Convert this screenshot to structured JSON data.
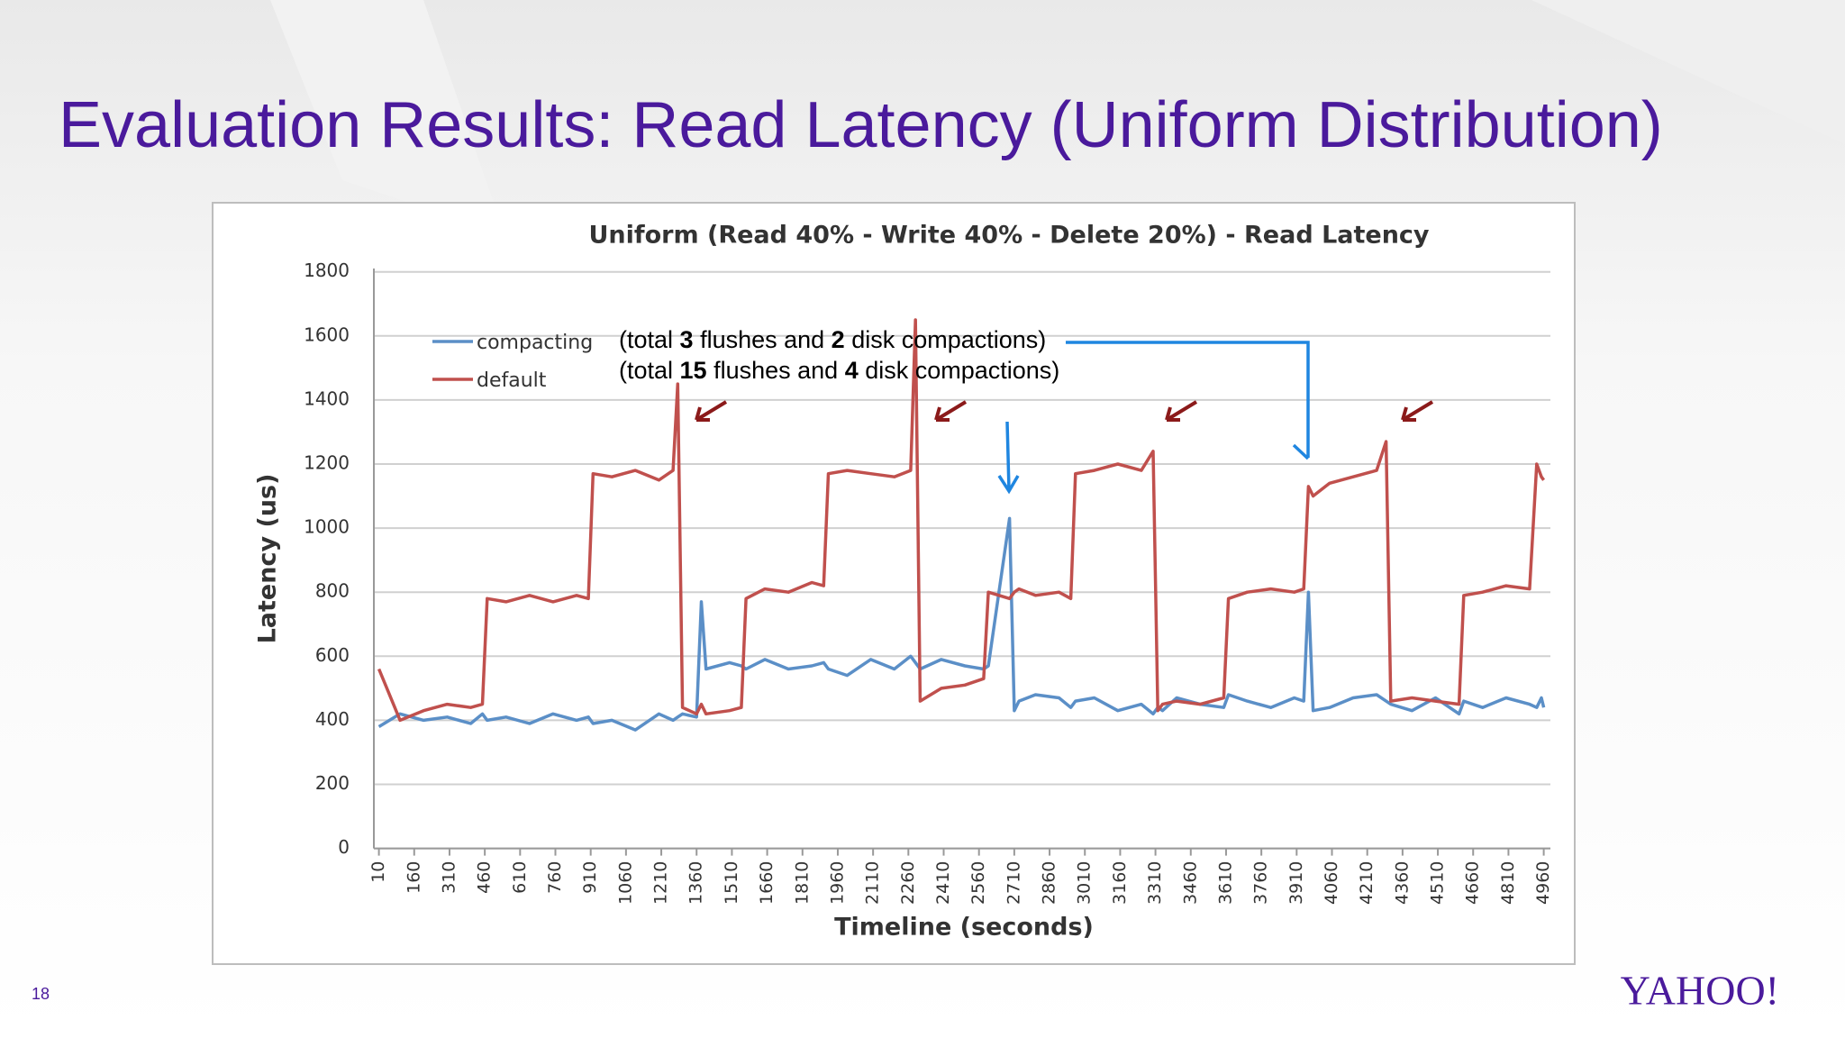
{
  "slide_title": "Evaluation Results: Read Latency (Uniform Distribution)",
  "page_number": "18",
  "logo": "YAHOO!",
  "chart_data": {
    "type": "line",
    "title": "Uniform (Read 40% - Write 40% - Delete 20%) - Read Latency",
    "x_label": "Timeline (seconds)",
    "y_label": "Latency (us)",
    "annotations": [
      [
        "(total ",
        "3",
        " flushes and ",
        "2",
        " disk compactions)"
      ],
      [
        "(total ",
        "15",
        " flushes and ",
        "4",
        " disk compactions)"
      ]
    ],
    "x": [
      10,
      100,
      200,
      300,
      400,
      450,
      470,
      550,
      650,
      750,
      850,
      900,
      920,
      1000,
      1100,
      1200,
      1260,
      1280,
      1300,
      1360,
      1380,
      1400,
      1500,
      1550,
      1570,
      1650,
      1750,
      1850,
      1900,
      1920,
      2000,
      2100,
      2200,
      2270,
      2290,
      2310,
      2400,
      2500,
      2580,
      2600,
      2690,
      2710,
      2730,
      2800,
      2900,
      2950,
      2970,
      3050,
      3150,
      3250,
      3300,
      3320,
      3340,
      3400,
      3500,
      3600,
      3620,
      3700,
      3800,
      3900,
      3940,
      3960,
      3980,
      4050,
      4150,
      4250,
      4290,
      4310,
      4400,
      4500,
      4600,
      4620,
      4700,
      4800,
      4900,
      4930,
      4950,
      4960
    ],
    "series": [
      {
        "name": "compacting",
        "color": "#5b8fc7",
        "values": [
          380,
          420,
          400,
          410,
          390,
          420,
          400,
          410,
          390,
          420,
          400,
          410,
          390,
          400,
          370,
          420,
          400,
          410,
          420,
          410,
          770,
          560,
          580,
          570,
          560,
          590,
          560,
          570,
          580,
          560,
          540,
          590,
          560,
          600,
          580,
          560,
          590,
          570,
          560,
          570,
          1030,
          430,
          460,
          480,
          470,
          440,
          460,
          470,
          430,
          450,
          420,
          440,
          430,
          470,
          450,
          440,
          480,
          460,
          440,
          470,
          460,
          800,
          430,
          440,
          470,
          480,
          460,
          450,
          430,
          470,
          420,
          460,
          440,
          470,
          450,
          440,
          470,
          440
        ]
      },
      {
        "name": "default",
        "color": "#c0504d",
        "values": [
          560,
          400,
          430,
          450,
          440,
          450,
          780,
          770,
          790,
          770,
          790,
          780,
          1170,
          1160,
          1180,
          1150,
          1180,
          1450,
          440,
          420,
          450,
          420,
          430,
          440,
          780,
          810,
          800,
          830,
          820,
          1170,
          1180,
          1170,
          1160,
          1180,
          1650,
          460,
          500,
          510,
          530,
          800,
          780,
          800,
          810,
          790,
          800,
          780,
          1170,
          1180,
          1200,
          1180,
          1240,
          430,
          450,
          460,
          450,
          470,
          780,
          800,
          810,
          800,
          810,
          1130,
          1100,
          1140,
          1160,
          1180,
          1270,
          460,
          470,
          460,
          450,
          790,
          800,
          820,
          810,
          1200,
          1160,
          1150
        ]
      }
    ],
    "xlim": [
      10,
      4960
    ],
    "xticks": [
      10,
      160,
      310,
      460,
      610,
      760,
      910,
      1060,
      1210,
      1360,
      1510,
      1660,
      1810,
      1960,
      2110,
      2260,
      2410,
      2560,
      2710,
      2860,
      3010,
      3160,
      3310,
      3460,
      3610,
      3760,
      3910,
      4060,
      4210,
      4360,
      4510,
      4660,
      4810,
      4960
    ],
    "ylim": [
      0,
      1800
    ],
    "yticks": [
      0,
      200,
      400,
      600,
      800,
      1000,
      1200,
      1400,
      1600,
      1800
    ],
    "grid": true
  }
}
